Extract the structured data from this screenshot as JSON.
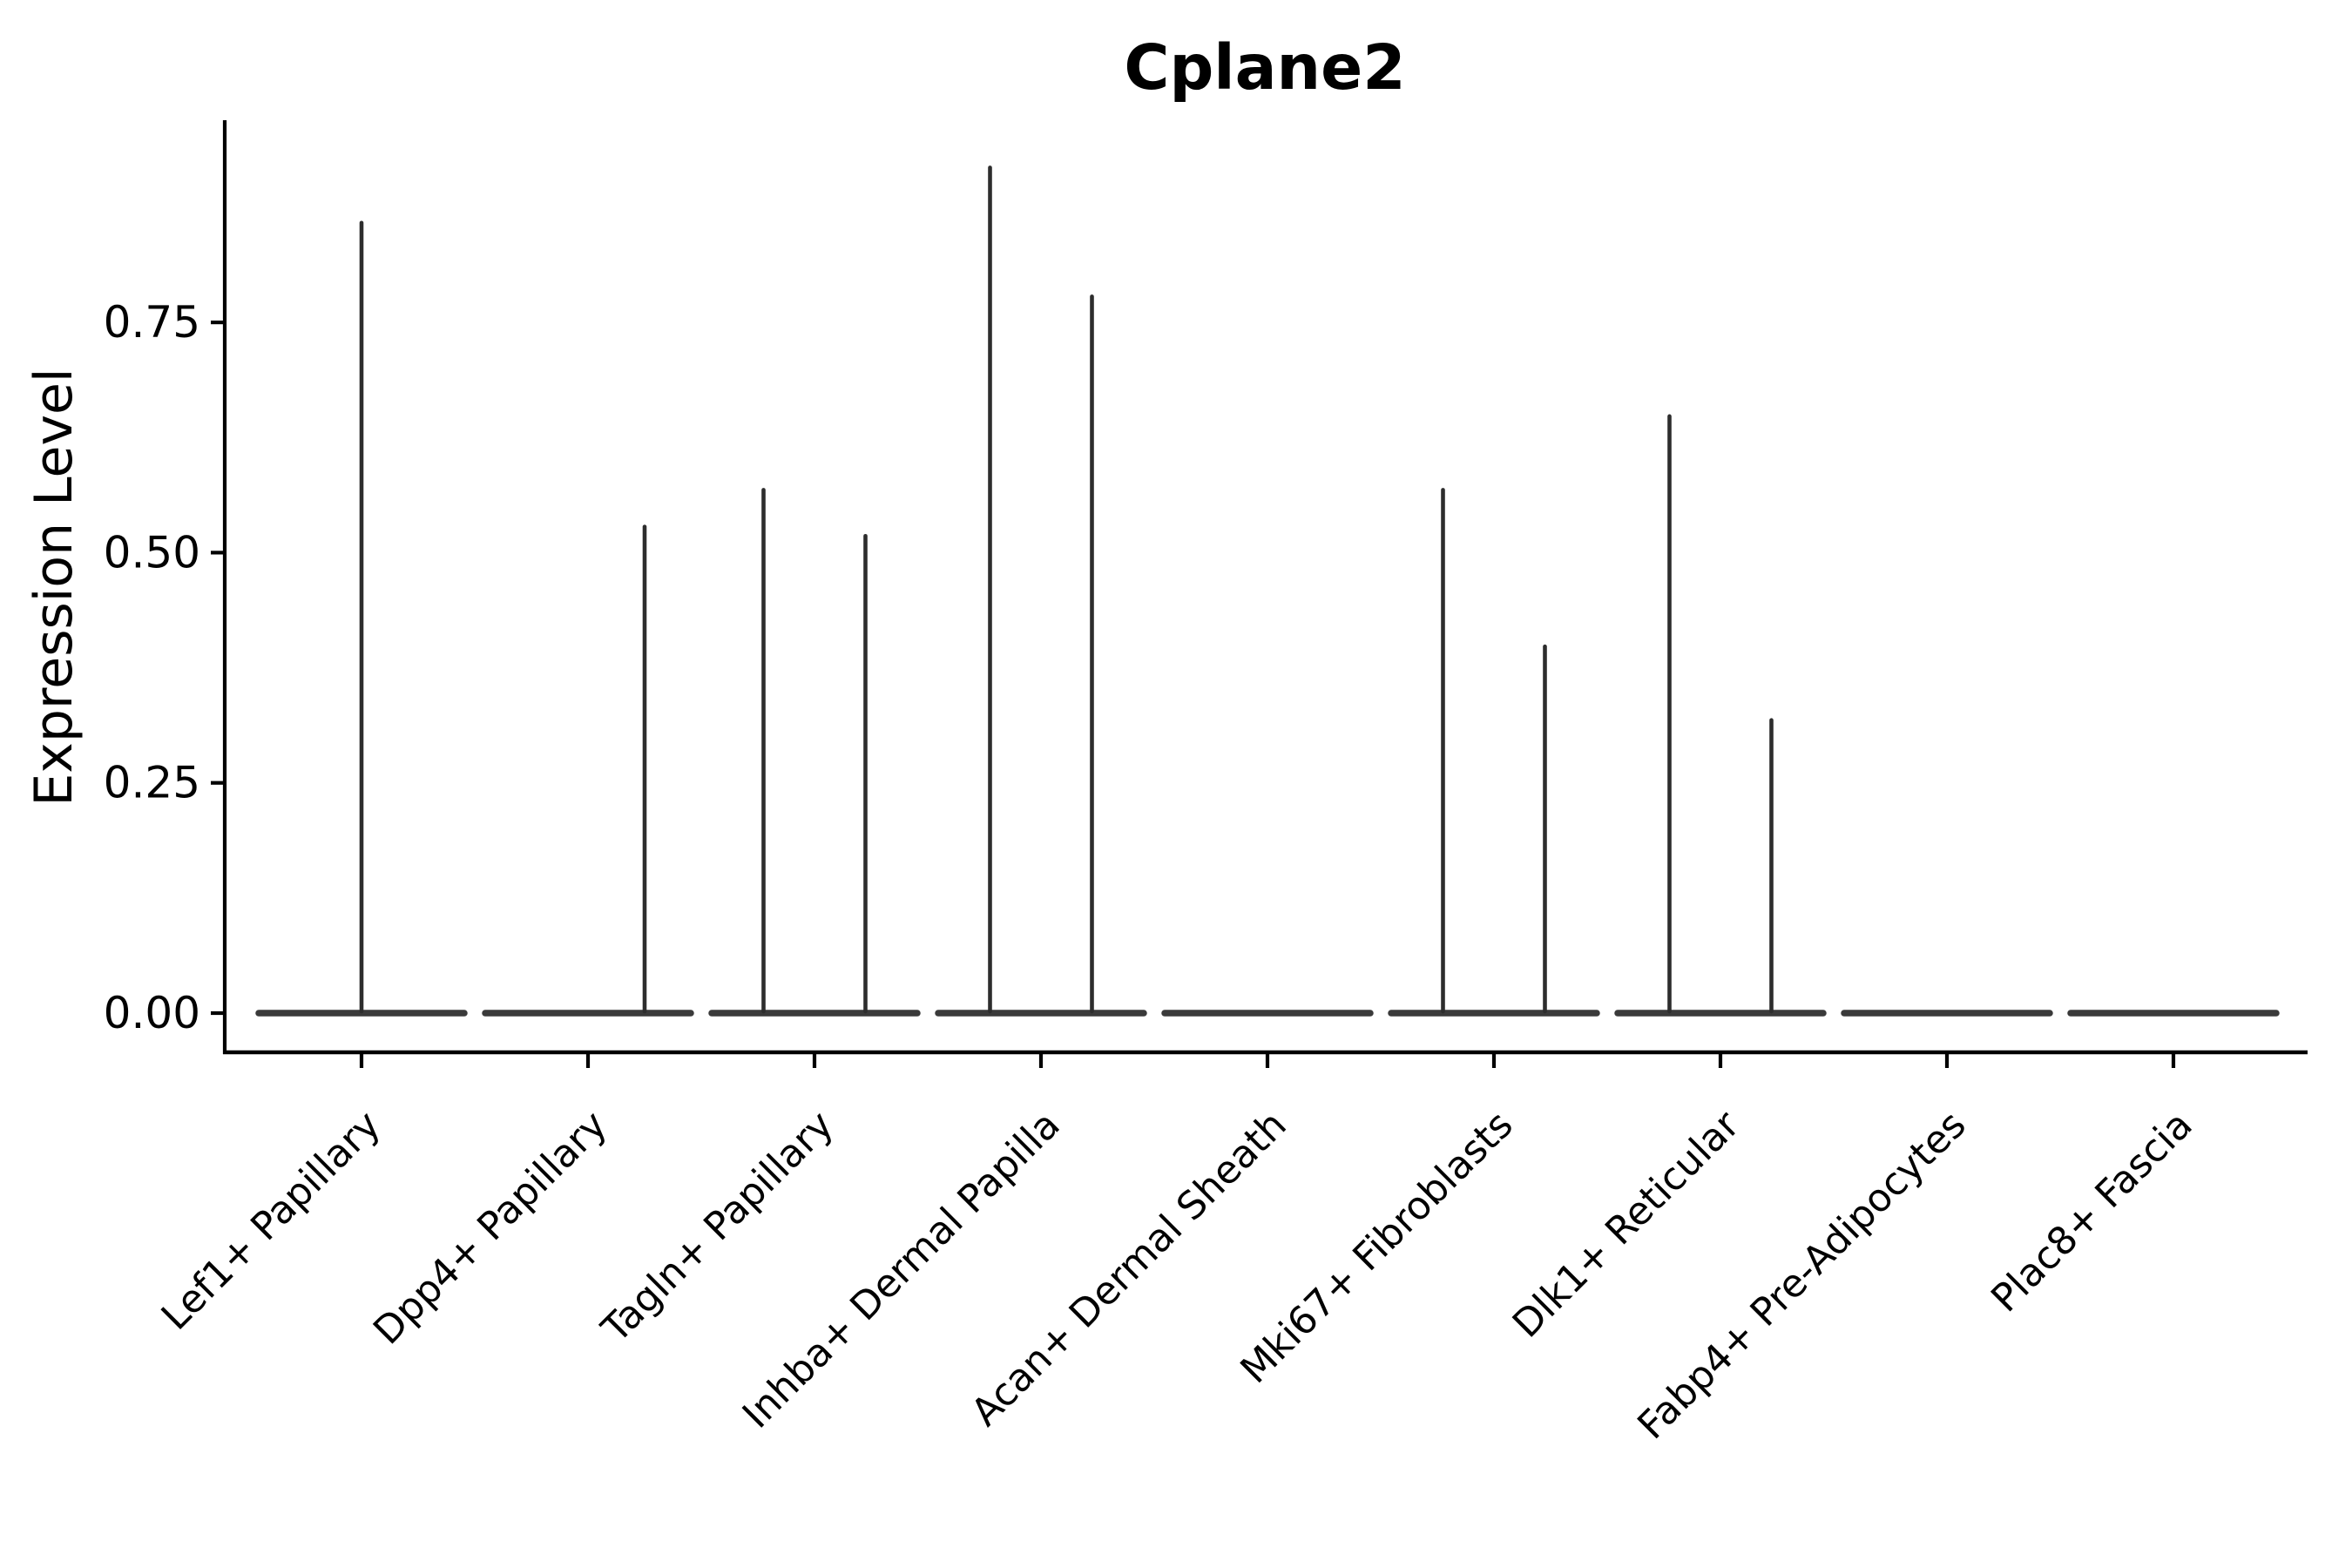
{
  "title": "Cplane2",
  "y_axis": {
    "label": "Expression Level",
    "ticks": [
      {
        "label": "0.00",
        "value": 0.0
      },
      {
        "label": "0.25",
        "value": 0.25
      },
      {
        "label": "0.50",
        "value": 0.5
      },
      {
        "label": "0.75",
        "value": 0.75
      }
    ]
  },
  "x_axis": {
    "categories": [
      "Lef1+ Papillary",
      "Dpp4+ Papillary",
      "Tagln+ Papillary",
      "Inhba+ Dermal Papilla",
      "Acan+ Dermal Sheath",
      "Mki67+ Fibroblasts",
      "Dlk1+ Reticular",
      "Fabp4+ Pre-Adipocytes",
      "Plac8+ Fascia"
    ]
  },
  "colors": {
    "background": "#ffffff",
    "axis": "#000000",
    "text": "#000000",
    "violin_base": "#3a3a3a",
    "violin_spike": "#2d2d2d"
  },
  "chart_data": {
    "type": "violin",
    "title": "Cplane2",
    "xlabel": "",
    "ylabel": "Expression Level",
    "ylim": [
      -0.043,
      0.968
    ],
    "yticks": [
      0.0,
      0.25,
      0.5,
      0.75
    ],
    "grid": false,
    "legend": "none",
    "categories": [
      "Lef1+ Papillary",
      "Dpp4+ Papillary",
      "Tagln+ Papillary",
      "Inhba+ Dermal Papilla",
      "Acan+ Dermal Sheath",
      "Mki67+ Fibroblasts",
      "Dlk1+ Reticular",
      "Fabp4+ Pre-Adipocytes",
      "Plac8+ Fascia"
    ],
    "description": "Violin plot of Cplane2 expression; most mass at 0 for every cell type (flat dark lens at y=0). Thin density spikes rise to the maximum expression per violin; several categories contain two side-by-side sub-violins (spike offset is fraction of category slot width).",
    "violins": [
      {
        "category": "Lef1+ Papillary",
        "base_value": 0.0,
        "spikes": [
          {
            "offset": 0.0,
            "max": 0.86
          }
        ]
      },
      {
        "category": "Dpp4+ Papillary",
        "base_value": 0.0,
        "spikes": [
          {
            "offset": 0.25,
            "max": 0.53
          }
        ]
      },
      {
        "category": "Tagln+ Papillary",
        "base_value": 0.0,
        "spikes": [
          {
            "offset": -0.225,
            "max": 0.57
          },
          {
            "offset": 0.225,
            "max": 0.52
          }
        ]
      },
      {
        "category": "Inhba+ Dermal Papilla",
        "base_value": 0.0,
        "spikes": [
          {
            "offset": -0.225,
            "max": 0.92
          },
          {
            "offset": 0.225,
            "max": 0.78
          }
        ]
      },
      {
        "category": "Acan+ Dermal Sheath",
        "base_value": 0.0,
        "spikes": []
      },
      {
        "category": "Mki67+ Fibroblasts",
        "base_value": 0.0,
        "spikes": [
          {
            "offset": -0.225,
            "max": 0.57
          },
          {
            "offset": 0.225,
            "max": 0.4
          }
        ]
      },
      {
        "category": "Dlk1+ Reticular",
        "base_value": 0.0,
        "spikes": [
          {
            "offset": -0.225,
            "max": 0.65
          },
          {
            "offset": 0.225,
            "max": 0.32
          }
        ]
      },
      {
        "category": "Fabp4+ Pre-Adipocytes",
        "base_value": 0.0,
        "spikes": []
      },
      {
        "category": "Plac8+ Fascia",
        "base_value": 0.0,
        "spikes": []
      }
    ]
  }
}
